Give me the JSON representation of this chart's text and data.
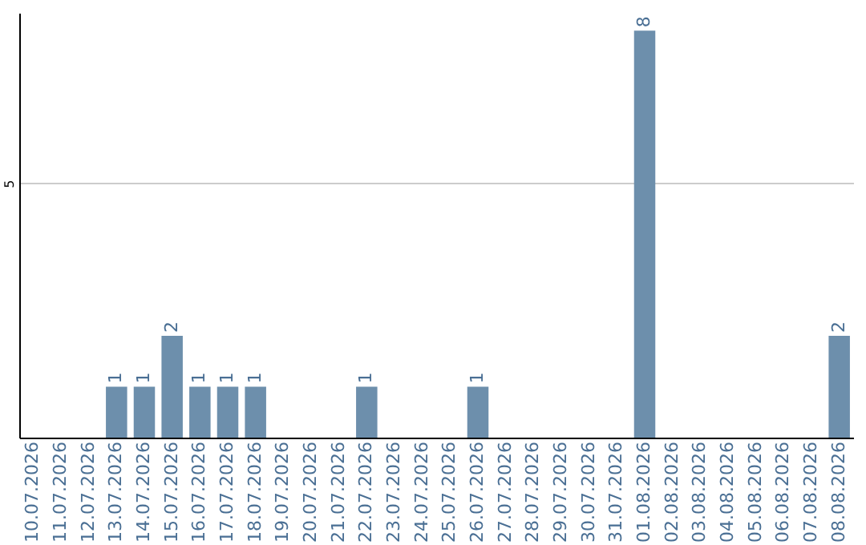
{
  "chart_data": {
    "type": "bar",
    "categories": [
      "10.07.2026",
      "11.07.2026",
      "12.07.2026",
      "13.07.2026",
      "14.07.2026",
      "15.07.2026",
      "16.07.2026",
      "17.07.2026",
      "18.07.2026",
      "19.07.2026",
      "20.07.2026",
      "21.07.2026",
      "22.07.2026",
      "23.07.2026",
      "24.07.2026",
      "25.07.2026",
      "26.07.2026",
      "27.07.2026",
      "28.07.2026",
      "29.07.2026",
      "30.07.2026",
      "31.07.2026",
      "01.08.2026",
      "02.08.2026",
      "03.08.2026",
      "04.08.2026",
      "05.08.2026",
      "06.08.2026",
      "07.08.2026",
      "08.08.2026"
    ],
    "values": [
      0,
      0,
      0,
      1,
      1,
      2,
      1,
      1,
      1,
      0,
      0,
      0,
      1,
      0,
      0,
      0,
      1,
      0,
      0,
      0,
      0,
      0,
      8,
      0,
      0,
      0,
      0,
      0,
      0,
      2
    ],
    "value_labels": [
      null,
      null,
      null,
      "1",
      "1",
      "2",
      "1",
      "1",
      "1",
      null,
      null,
      null,
      "1",
      null,
      null,
      null,
      "1",
      null,
      null,
      null,
      null,
      null,
      "8",
      null,
      null,
      null,
      null,
      null,
      null,
      "2"
    ],
    "color": "#6d8fac",
    "ylim": [
      0,
      8.35
    ],
    "yticks": [
      5
    ],
    "grid": "y"
  }
}
